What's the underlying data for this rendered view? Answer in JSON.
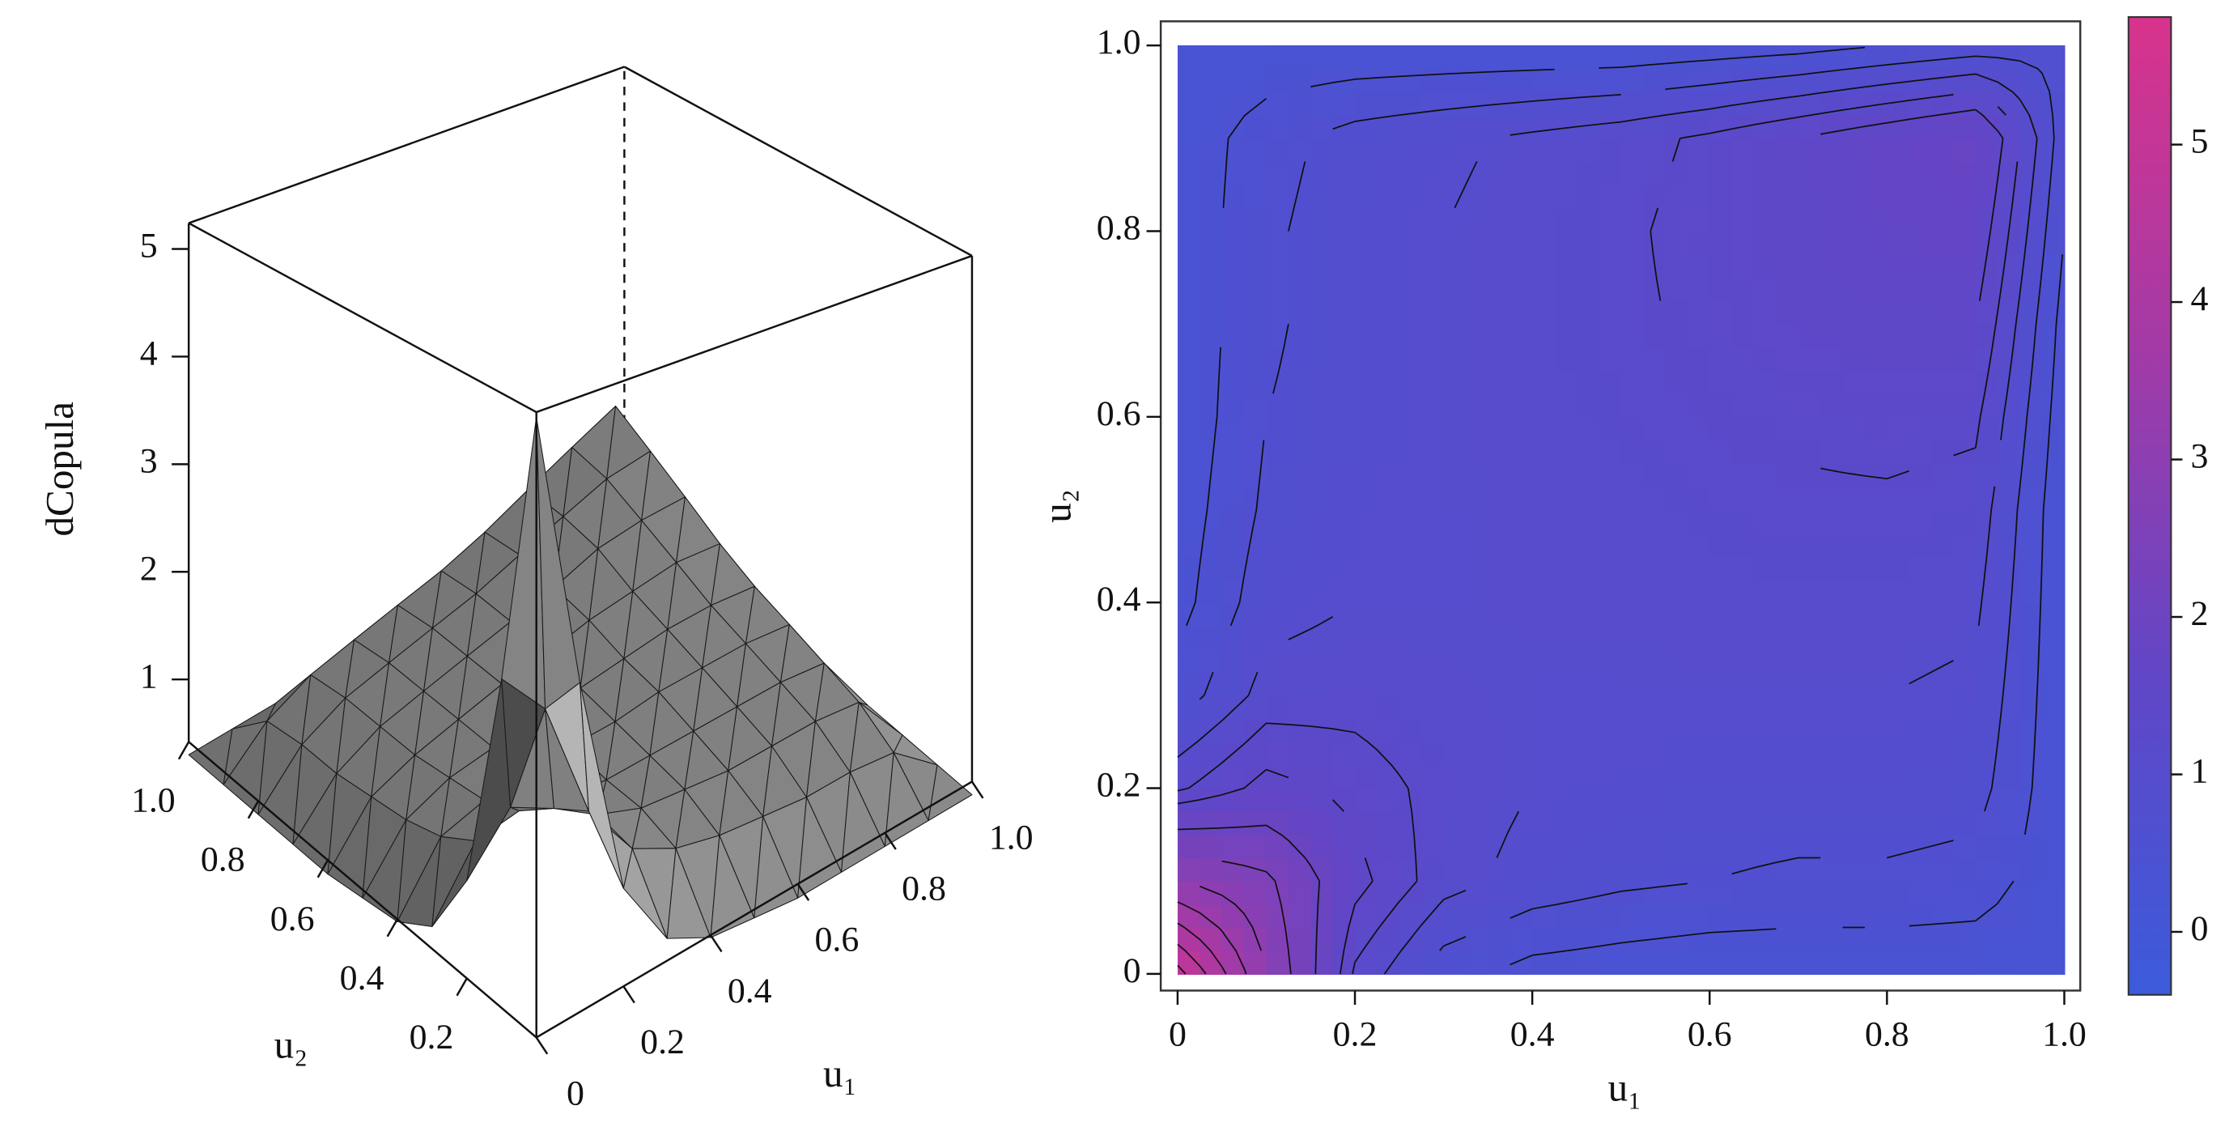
{
  "chart_data": [
    {
      "type": "surface3d",
      "x_label": "u₁",
      "y_label": "u₂",
      "z_label": "dCopula",
      "x": [
        0,
        0.1,
        0.2,
        0.3,
        0.4,
        0.5,
        0.6,
        0.7,
        0.8,
        0.9,
        1
      ],
      "y": [
        0,
        0.1,
        0.2,
        0.3,
        0.4,
        0.5,
        0.6,
        0.7,
        0.8,
        0.9,
        1
      ],
      "z": [
        [
          5.2,
          3.0,
          1.2,
          0.6,
          0.4,
          0.35,
          0.3,
          0.3,
          0.3,
          0.3,
          0.3
        ],
        [
          3.0,
          2.6,
          1.6,
          1.1,
          0.9,
          0.8,
          0.75,
          0.7,
          0.7,
          0.65,
          0.3
        ],
        [
          1.2,
          1.6,
          1.4,
          1.15,
          1.0,
          0.95,
          0.9,
          0.9,
          0.9,
          0.85,
          0.3
        ],
        [
          0.6,
          1.1,
          1.15,
          1.05,
          1.0,
          1.0,
          1.0,
          1.0,
          1.0,
          0.95,
          0.3
        ],
        [
          0.4,
          0.9,
          1.0,
          1.0,
          1.05,
          1.05,
          1.1,
          1.1,
          1.1,
          1.05,
          0.3
        ],
        [
          0.35,
          0.8,
          0.95,
          1.0,
          1.05,
          1.1,
          1.15,
          1.2,
          1.2,
          1.15,
          0.3
        ],
        [
          0.3,
          0.75,
          0.9,
          1.0,
          1.1,
          1.15,
          1.25,
          1.3,
          1.35,
          1.3,
          0.35
        ],
        [
          0.3,
          0.7,
          0.9,
          1.0,
          1.1,
          1.2,
          1.3,
          1.45,
          1.5,
          1.5,
          0.4
        ],
        [
          0.3,
          0.7,
          0.9,
          1.0,
          1.1,
          1.2,
          1.35,
          1.5,
          1.65,
          1.7,
          0.5
        ],
        [
          0.3,
          0.65,
          0.85,
          0.95,
          1.05,
          1.15,
          1.3,
          1.5,
          1.7,
          1.9,
          0.6
        ],
        [
          0.3,
          0.3,
          0.3,
          0.3,
          0.3,
          0.3,
          0.35,
          0.4,
          0.5,
          0.6,
          0.7
        ]
      ],
      "xlim": [
        0,
        1
      ],
      "ylim": [
        0,
        1
      ],
      "zlim": [
        0.42,
        5.24
      ],
      "xticks": [
        0,
        0.2,
        0.4,
        0.6,
        0.8,
        {
          "value": 1,
          "label": "1.0"
        }
      ],
      "yticks": [
        0.2,
        0.4,
        0.6,
        0.8,
        {
          "value": 1,
          "label": "1.0"
        }
      ],
      "zticks": [
        1,
        2,
        3,
        4,
        5
      ]
    },
    {
      "type": "contour",
      "x_label": "u₁",
      "y_label": "u₂",
      "x": [
        0,
        0.1,
        0.2,
        0.3,
        0.4,
        0.5,
        0.6,
        0.7,
        0.8,
        0.9,
        1
      ],
      "y": [
        0,
        0.1,
        0.2,
        0.3,
        0.4,
        0.5,
        0.6,
        0.7,
        0.8,
        0.9,
        1
      ],
      "z": [
        [
          5.2,
          3.0,
          1.2,
          0.6,
          0.4,
          0.35,
          0.3,
          0.3,
          0.3,
          0.3,
          0.3
        ],
        [
          3.0,
          2.6,
          1.6,
          1.1,
          0.9,
          0.8,
          0.75,
          0.7,
          0.7,
          0.65,
          0.3
        ],
        [
          1.2,
          1.6,
          1.4,
          1.15,
          1.0,
          0.95,
          0.9,
          0.9,
          0.9,
          0.85,
          0.3
        ],
        [
          0.6,
          1.1,
          1.15,
          1.05,
          1.0,
          1.0,
          1.0,
          1.0,
          1.0,
          0.95,
          0.3
        ],
        [
          0.4,
          0.9,
          1.0,
          1.0,
          1.05,
          1.05,
          1.1,
          1.1,
          1.1,
          1.05,
          0.3
        ],
        [
          0.35,
          0.8,
          0.95,
          1.0,
          1.05,
          1.1,
          1.15,
          1.2,
          1.2,
          1.15,
          0.3
        ],
        [
          0.3,
          0.75,
          0.9,
          1.0,
          1.1,
          1.15,
          1.25,
          1.3,
          1.35,
          1.3,
          0.35
        ],
        [
          0.3,
          0.7,
          0.9,
          1.0,
          1.1,
          1.2,
          1.3,
          1.45,
          1.5,
          1.5,
          0.4
        ],
        [
          0.3,
          0.7,
          0.9,
          1.0,
          1.1,
          1.2,
          1.35,
          1.5,
          1.65,
          1.7,
          0.5
        ],
        [
          0.3,
          0.65,
          0.85,
          0.95,
          1.05,
          1.15,
          1.3,
          1.5,
          1.7,
          1.9,
          0.6
        ],
        [
          0.3,
          0.3,
          0.3,
          0.3,
          0.3,
          0.3,
          0.35,
          0.4,
          0.5,
          0.6,
          0.7
        ]
      ],
      "levels": [
        0.5,
        0.75,
        1,
        1.25,
        1.5,
        2,
        2.5,
        3,
        3.5,
        4,
        4.5,
        5
      ],
      "colors": [
        "#3b5bdb",
        "#6246c6",
        "#a43aa6",
        "#d8338c"
      ],
      "xlim": [
        -0.019,
        1.018
      ],
      "ylim": [
        -0.018,
        1.026
      ],
      "xticks": [
        0,
        0.2,
        0.4,
        0.6,
        0.8,
        {
          "value": 1,
          "label": "1.0"
        }
      ],
      "yticks": [
        0,
        0.2,
        0.4,
        0.6,
        0.8,
        {
          "value": 1,
          "label": "1.0"
        }
      ],
      "colorbar_lim": [
        -0.4,
        5.81
      ],
      "colorbar_ticks": [
        0,
        1,
        2,
        3,
        4,
        5
      ]
    }
  ]
}
